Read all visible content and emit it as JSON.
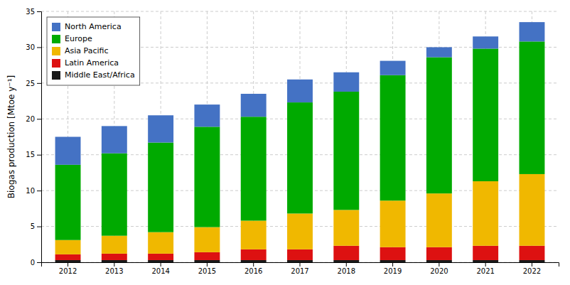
{
  "chart_data": {
    "type": "bar",
    "stacked": true,
    "categories": [
      "2012",
      "2013",
      "2014",
      "2015",
      "2016",
      "2017",
      "2018",
      "2019",
      "2020",
      "2021",
      "2022"
    ],
    "series": [
      {
        "name": "Middle East/Africa",
        "color": "#1a1a1a",
        "values": [
          0.3,
          0.3,
          0.3,
          0.3,
          0.3,
          0.3,
          0.3,
          0.3,
          0.3,
          0.3,
          0.3
        ]
      },
      {
        "name": "Latin America",
        "color": "#dd1111",
        "values": [
          0.8,
          0.9,
          0.9,
          1.1,
          1.5,
          1.5,
          2.0,
          1.8,
          1.8,
          2.0,
          2.0
        ]
      },
      {
        "name": "Asia Pacific",
        "color": "#f0b800",
        "values": [
          2.0,
          2.5,
          3.0,
          3.5,
          4.0,
          5.0,
          5.0,
          6.5,
          7.5,
          9.0,
          10.0
        ]
      },
      {
        "name": "Europe",
        "color": "#00aa00",
        "values": [
          10.5,
          11.5,
          12.5,
          14.0,
          14.5,
          15.5,
          16.5,
          17.5,
          19.0,
          18.5,
          18.5
        ]
      },
      {
        "name": "North America",
        "color": "#4472c4",
        "values": [
          3.9,
          3.8,
          3.8,
          3.1,
          3.2,
          3.2,
          2.7,
          2.0,
          1.4,
          1.7,
          2.7
        ]
      }
    ],
    "y_label": "Biogas production [Mtoe y⁻¹]",
    "ylim": [
      0,
      35
    ],
    "yticks": [
      0,
      5,
      10,
      15,
      20,
      25,
      30,
      35
    ],
    "grid": true,
    "legend": "top-left"
  }
}
